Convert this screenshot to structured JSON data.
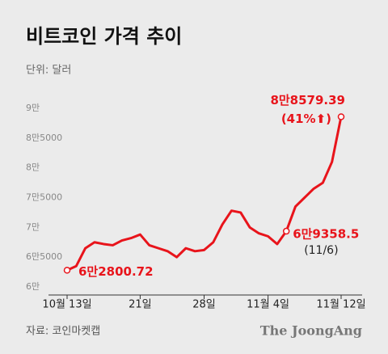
{
  "chart_data": {
    "type": "line",
    "title": "비트코인 가격 추이",
    "subtitle": "단위: 달러",
    "source": "자료: 코인마켓캡",
    "brand": "The JoongAng",
    "categories": [
      "10월 13일",
      null,
      null,
      null,
      null,
      null,
      null,
      null,
      "21일",
      null,
      null,
      null,
      null,
      null,
      null,
      "28일",
      null,
      null,
      null,
      null,
      null,
      null,
      "11월 4일",
      null,
      null,
      null,
      null,
      null,
      null,
      null,
      "11월 12일"
    ],
    "series": [
      {
        "name": "비트코인",
        "color": "#e8141b",
        "values": [
          62800.72,
          63500,
          66500,
          67500,
          67200,
          67000,
          67800,
          68200,
          68800,
          67000,
          66500,
          66000,
          65000,
          66500,
          66000,
          66200,
          67500,
          70500,
          72800,
          72500,
          70000,
          69000,
          68500,
          67200,
          69358.5,
          73500,
          75000,
          76500,
          77500,
          81000,
          88579.39
        ],
        "value_labels": [
          "6만2800.72",
          null,
          null,
          null,
          null,
          null,
          null,
          null,
          null,
          null,
          null,
          null,
          null,
          null,
          null,
          null,
          null,
          null,
          null,
          null,
          null,
          null,
          null,
          null,
          "6만9358.5",
          null,
          null,
          null,
          null,
          null,
          "8만8579.39"
        ]
      }
    ],
    "annotations": [
      "(11/6)",
      "(41%⬆)"
    ],
    "ylim": [
      60000,
      90000
    ],
    "yticks": [
      {
        "value": 60000,
        "label": "6만"
      },
      {
        "value": 65000,
        "label": "6만5000"
      },
      {
        "value": 70000,
        "label": "7만"
      },
      {
        "value": 75000,
        "label": "7만5000"
      },
      {
        "value": 80000,
        "label": "8만"
      },
      {
        "value": 85000,
        "label": "8만5000"
      },
      {
        "value": 90000,
        "label": "9만"
      }
    ],
    "grid": false
  }
}
